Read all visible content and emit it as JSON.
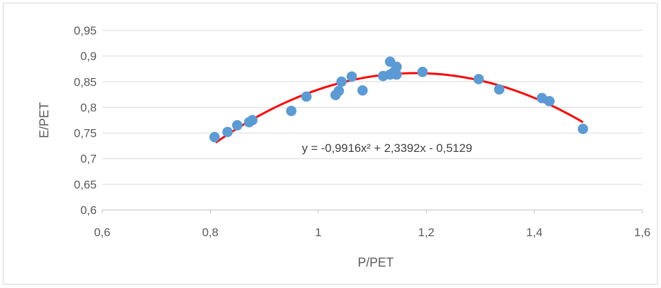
{
  "chart_data": {
    "type": "scatter",
    "xlabel": "P/PET",
    "ylabel": "E/PET",
    "xlim": [
      0.6,
      1.6
    ],
    "ylim": [
      0.6,
      0.95
    ],
    "x_ticks": [
      "0,6",
      "0,8",
      "1",
      "1,2",
      "1,4",
      "1,6"
    ],
    "y_ticks": [
      "0,6",
      "0,65",
      "0,7",
      "0,75",
      "0,8",
      "0,85",
      "0,9",
      "0,95"
    ],
    "grid": true,
    "point_color": "#5b9bd5",
    "trendline_color": "#ff0000",
    "trendline": {
      "type": "polynomial",
      "coefficients": [
        -0.9916,
        2.3392,
        -0.5129
      ],
      "x_range": [
        0.81,
        1.49
      ],
      "label": "y = -0,9916x² + 2,3392x - 0,5129"
    },
    "points": [
      {
        "x": 0.808,
        "y": 0.742
      },
      {
        "x": 0.832,
        "y": 0.752
      },
      {
        "x": 0.85,
        "y": 0.765
      },
      {
        "x": 0.872,
        "y": 0.771
      },
      {
        "x": 0.878,
        "y": 0.775
      },
      {
        "x": 0.95,
        "y": 0.793
      },
      {
        "x": 0.978,
        "y": 0.821
      },
      {
        "x": 1.032,
        "y": 0.824
      },
      {
        "x": 1.038,
        "y": 0.832
      },
      {
        "x": 1.043,
        "y": 0.85
      },
      {
        "x": 1.062,
        "y": 0.86
      },
      {
        "x": 1.082,
        "y": 0.833
      },
      {
        "x": 1.12,
        "y": 0.861
      },
      {
        "x": 1.133,
        "y": 0.864
      },
      {
        "x": 1.133,
        "y": 0.889
      },
      {
        "x": 1.14,
        "y": 0.869
      },
      {
        "x": 1.145,
        "y": 0.864
      },
      {
        "x": 1.145,
        "y": 0.879
      },
      {
        "x": 1.193,
        "y": 0.869
      },
      {
        "x": 1.297,
        "y": 0.855
      },
      {
        "x": 1.335,
        "y": 0.835
      },
      {
        "x": 1.414,
        "y": 0.818
      },
      {
        "x": 1.428,
        "y": 0.812
      },
      {
        "x": 1.49,
        "y": 0.758
      }
    ]
  }
}
